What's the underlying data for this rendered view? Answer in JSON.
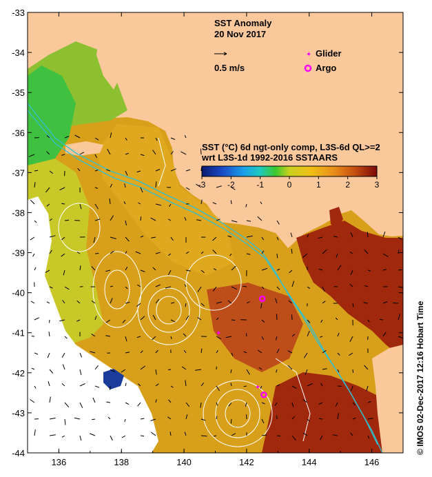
{
  "title": {
    "line1": "SST Anomaly",
    "line2": "20 Nov 2017"
  },
  "vector_scale": {
    "label": "0.5 m/s"
  },
  "legend": {
    "glider": "Glider",
    "argo": "Argo"
  },
  "colorbar": {
    "title_line1": "SST (°C) 6d ngt-only comp, L3S-6d QL>=2",
    "title_line2": "wrt L3S-1d 1992-2016 SSTAARS",
    "ticks": [
      "-3",
      "-2",
      "-1",
      "0",
      "1",
      "2",
      "3"
    ],
    "range": [
      -3,
      3
    ]
  },
  "credit": "© IMOS 02-Dec-2017 12:16 Hobart Time",
  "axes": {
    "x_ticks": [
      "136",
      "138",
      "140",
      "142",
      "144",
      "146"
    ],
    "y_ticks": [
      "-33",
      "-34",
      "-35",
      "-36",
      "-37",
      "-38",
      "-39",
      "-40",
      "-41",
      "-42",
      "-43",
      "-44"
    ],
    "lon_range": [
      135,
      147
    ],
    "lat_range": [
      -44,
      -33
    ]
  },
  "markers": {
    "glider": [
      [
        141.1,
        -41.0
      ],
      [
        142.35,
        -42.35
      ]
    ],
    "argo": [
      [
        142.5,
        -40.15
      ],
      [
        142.55,
        -42.55
      ]
    ]
  },
  "colors": {
    "land": "#fac89b",
    "glider": "#ff00ff",
    "argo": "#ff00ff",
    "anomaly_low": "#1c3c9c",
    "anomaly_zero": "#c8d020",
    "anomaly_high": "#960a0a"
  }
}
